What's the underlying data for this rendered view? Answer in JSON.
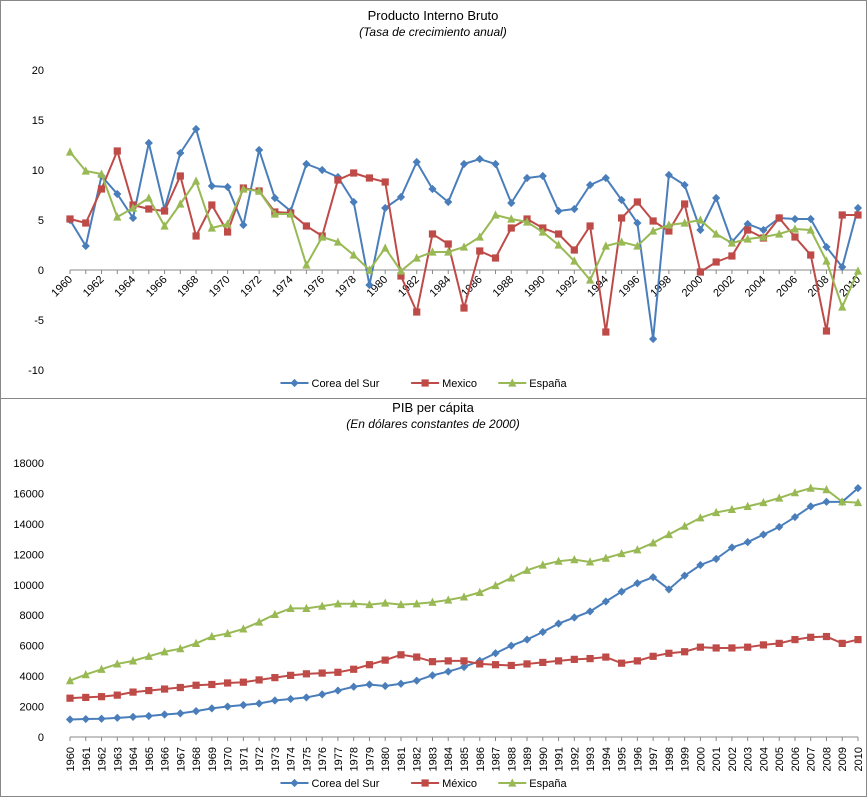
{
  "chart_data": [
    {
      "type": "line",
      "title": "Producto Interno Bruto",
      "subtitle": "(Tasa de crecimiento anual)",
      "categories": [
        "1960",
        null,
        "1962",
        null,
        "1964",
        null,
        "1966",
        null,
        "1968",
        null,
        "1970",
        null,
        "1972",
        null,
        "1974",
        null,
        "1976",
        null,
        "1978",
        null,
        "1980",
        null,
        "1982",
        null,
        "1984",
        null,
        "1986",
        null,
        "1988",
        null,
        "1990",
        null,
        "1992",
        null,
        "1994",
        null,
        "1996",
        null,
        "1998",
        null,
        "2000",
        null,
        "2002",
        null,
        "2004",
        null,
        "2006",
        null,
        "2008",
        null,
        "2010"
      ],
      "ylim": [
        -10,
        20
      ],
      "yticks": [
        -10,
        -5,
        0,
        5,
        10,
        15,
        20
      ],
      "grid": false,
      "legend": "bottom",
      "x_label_rotation": -45,
      "series": [
        {
          "name": "Corea del Sur",
          "color": "#4a7ebb",
          "marker": "diamond",
          "values": [
            5.0,
            2.4,
            9.4,
            7.6,
            5.2,
            12.7,
            6.1,
            11.7,
            14.1,
            8.4,
            8.3,
            4.5,
            12.0,
            7.2,
            5.9,
            10.6,
            10.0,
            9.3,
            6.8,
            -1.5,
            6.2,
            7.3,
            10.8,
            8.1,
            6.8,
            10.6,
            11.1,
            10.6,
            6.7,
            9.2,
            9.4,
            5.9,
            6.1,
            8.5,
            9.2,
            7.0,
            4.7,
            -6.9,
            9.5,
            8.5,
            4.0,
            7.2,
            2.8,
            4.6,
            4.0,
            5.2,
            5.1,
            5.1,
            2.3,
            0.3,
            6.2
          ]
        },
        {
          "name": "Mexico",
          "color": "#be4b48",
          "marker": "square",
          "values": [
            5.1,
            4.7,
            8.1,
            11.9,
            6.5,
            6.1,
            5.9,
            9.4,
            3.4,
            6.5,
            3.8,
            8.2,
            7.9,
            5.8,
            5.7,
            4.4,
            3.4,
            9.0,
            9.7,
            9.2,
            8.8,
            -0.6,
            -4.2,
            3.6,
            2.6,
            -3.8,
            1.9,
            1.2,
            4.2,
            5.1,
            4.2,
            3.6,
            2.0,
            4.4,
            -6.2,
            5.2,
            6.8,
            4.9,
            3.9,
            6.6,
            -0.2,
            0.8,
            1.4,
            4.0,
            3.2,
            5.2,
            3.3,
            1.5,
            -6.1,
            5.5,
            5.5
          ]
        },
        {
          "name": "España",
          "color": "#98b954",
          "marker": "triangle",
          "values": [
            11.8,
            9.9,
            9.6,
            5.3,
            6.2,
            7.2,
            4.4,
            6.6,
            8.9,
            4.2,
            4.6,
            8.1,
            7.9,
            5.6,
            5.6,
            0.5,
            3.3,
            2.8,
            1.5,
            0.0,
            2.2,
            -0.1,
            1.2,
            1.8,
            1.8,
            2.3,
            3.3,
            5.5,
            5.1,
            4.8,
            3.8,
            2.5,
            0.9,
            -1.0,
            2.4,
            2.8,
            2.4,
            3.9,
            4.5,
            4.7,
            5.0,
            3.6,
            2.7,
            3.1,
            3.3,
            3.6,
            4.1,
            4.0,
            0.9,
            -3.7,
            -0.1
          ]
        }
      ]
    },
    {
      "type": "line",
      "title": "PIB per cápita",
      "subtitle": "(En dólares constantes de 2000)",
      "categories": [
        "1960",
        "1961",
        "1962",
        "1963",
        "1964",
        "1965",
        "1966",
        "1967",
        "1968",
        "1969",
        "1970",
        "1971",
        "1972",
        "1973",
        "1974",
        "1975",
        "1976",
        "1977",
        "1978",
        "1979",
        "1980",
        "1981",
        "1982",
        "1983",
        "1984",
        "1985",
        "1986",
        "1987",
        "1988",
        "1989",
        "1990",
        "1991",
        "1992",
        "1993",
        "1994",
        "1995",
        "1996",
        "1997",
        "1998",
        "1999",
        "2000",
        "2001",
        "2002",
        "2003",
        "2004",
        "2005",
        "2006",
        "2007",
        "2008",
        "2009",
        "2010"
      ],
      "ylim": [
        0,
        18000
      ],
      "yticks": [
        0,
        2000,
        4000,
        6000,
        8000,
        10000,
        12000,
        14000,
        16000,
        18000
      ],
      "grid": false,
      "legend": "bottom",
      "x_label_rotation": -90,
      "series": [
        {
          "name": "Corea del Sur",
          "color": "#4a7ebb",
          "marker": "diamond",
          "values": [
            1150,
            1180,
            1200,
            1260,
            1320,
            1380,
            1480,
            1550,
            1700,
            1880,
            2000,
            2100,
            2200,
            2400,
            2500,
            2600,
            2800,
            3050,
            3300,
            3450,
            3350,
            3500,
            3700,
            4050,
            4300,
            4600,
            5000,
            5500,
            6000,
            6400,
            6900,
            7450,
            7850,
            8250,
            8900,
            9550,
            10100,
            10500,
            9700,
            10600,
            11300,
            11700,
            12450,
            12800,
            13300,
            13800,
            14450,
            15150,
            15450,
            15450,
            16350
          ]
        },
        {
          "name": "México",
          "color": "#be4b48",
          "marker": "square",
          "values": [
            2550,
            2600,
            2650,
            2750,
            2950,
            3050,
            3150,
            3250,
            3400,
            3450,
            3550,
            3600,
            3750,
            3900,
            4050,
            4150,
            4200,
            4250,
            4450,
            4750,
            5050,
            5400,
            5250,
            4950,
            5000,
            5000,
            4800,
            4750,
            4700,
            4800,
            4900,
            5000,
            5100,
            5150,
            5250,
            4850,
            5000,
            5300,
            5500,
            5600,
            5900,
            5850,
            5850,
            5900,
            6050,
            6150,
            6400,
            6550,
            6600,
            6150,
            6400
          ]
        },
        {
          "name": "España",
          "color": "#98b954",
          "marker": "triangle",
          "values": [
            3700,
            4100,
            4450,
            4800,
            5000,
            5300,
            5600,
            5800,
            6150,
            6600,
            6800,
            7100,
            7550,
            8050,
            8450,
            8450,
            8600,
            8750,
            8750,
            8700,
            8800,
            8700,
            8750,
            8850,
            9000,
            9200,
            9500,
            9950,
            10450,
            10950,
            11300,
            11550,
            11650,
            11500,
            11750,
            12050,
            12300,
            12750,
            13300,
            13850,
            14400,
            14750,
            14950,
            15150,
            15400,
            15700,
            16050,
            16350,
            16250,
            15450,
            15400
          ]
        }
      ]
    }
  ]
}
